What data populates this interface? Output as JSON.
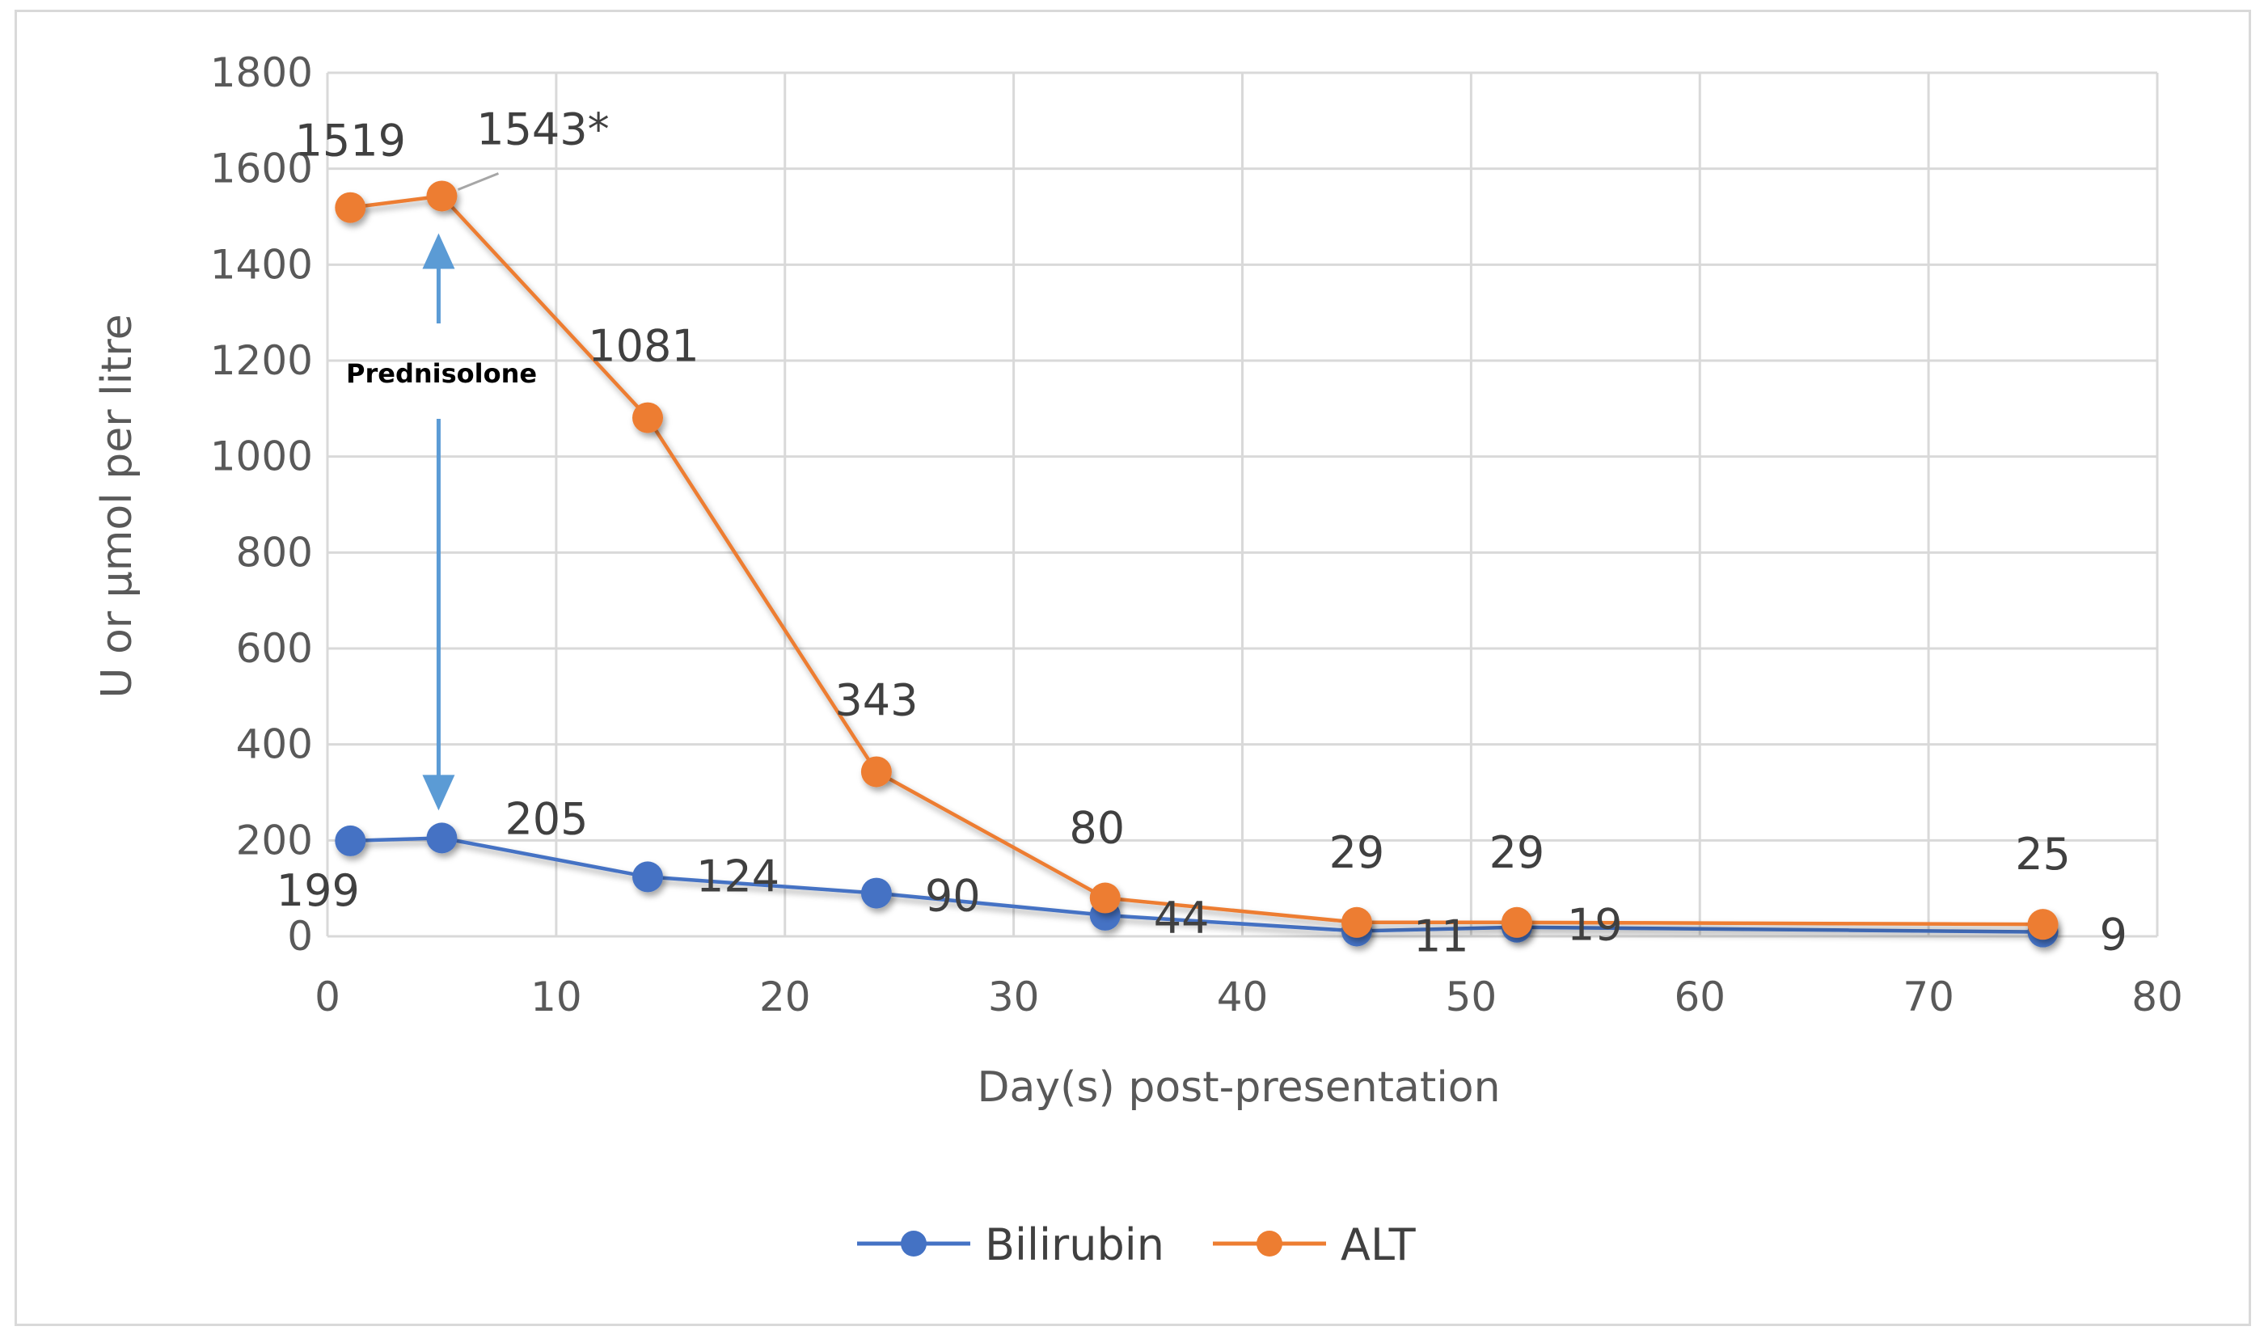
{
  "chart_data": {
    "type": "line",
    "xlabel": "Day(s) post-presentation",
    "ylabel": "U or µmol per litre",
    "xlim": [
      0,
      80
    ],
    "ylim": [
      0,
      1800
    ],
    "x_ticks": [
      0,
      10,
      20,
      30,
      40,
      50,
      60,
      70,
      80
    ],
    "y_ticks": [
      0,
      200,
      400,
      600,
      800,
      1000,
      1200,
      1400,
      1600,
      1800
    ],
    "grid": true,
    "legend": "bottom",
    "series": [
      {
        "name": "Bilirubin",
        "color": "#4472C4",
        "x": [
          1,
          5,
          14,
          24,
          34,
          45,
          52,
          75
        ],
        "y": [
          199,
          205,
          124,
          90,
          44,
          11,
          19,
          9
        ],
        "labels": [
          "199",
          "205",
          "124",
          "90",
          "44",
          "11",
          "19",
          "9"
        ]
      },
      {
        "name": "ALT",
        "color": "#ED7D31",
        "x": [
          1,
          5,
          14,
          24,
          34,
          45,
          52,
          75
        ],
        "y": [
          1519,
          1543,
          1081,
          343,
          80,
          29,
          29,
          25
        ],
        "labels": [
          "1519",
          "1543*",
          "1081",
          "343",
          "80",
          "29",
          "29",
          "25"
        ]
      }
    ],
    "annotations": [
      {
        "text": "Prednisolone",
        "x": 5,
        "y_from": 205,
        "y_to": 1543,
        "color": "#5B9BD5"
      }
    ]
  }
}
